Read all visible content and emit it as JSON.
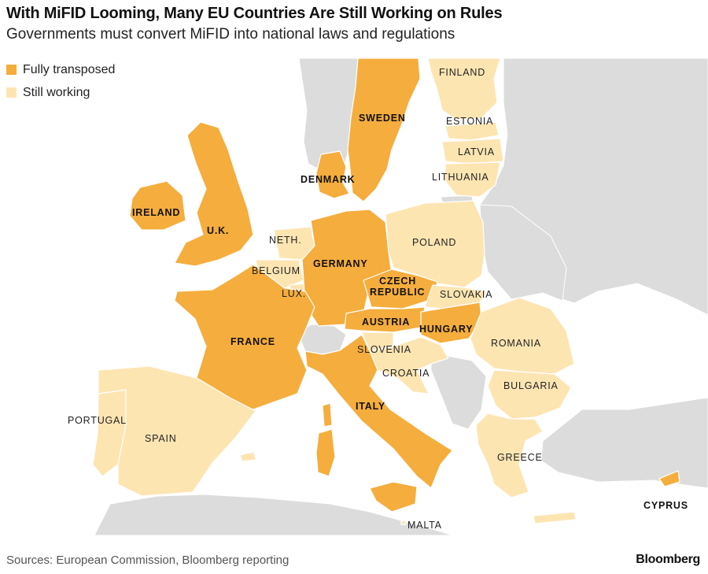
{
  "header": {
    "title": "With MiFID Looming, Many EU Countries Are Still Working on Rules",
    "subtitle": "Governments must convert MiFID into national laws and regulations"
  },
  "colors": {
    "fully": "#f5ad3d",
    "still": "#fde5b2",
    "other_land": "#dcdcdc",
    "sea": "#ffffff"
  },
  "legend": {
    "items": [
      {
        "label": "Fully transposed",
        "status": "fully"
      },
      {
        "label": "Still working",
        "status": "still"
      }
    ]
  },
  "countries": [
    {
      "name": "FINLAND",
      "status": "still"
    },
    {
      "name": "SWEDEN",
      "status": "fully"
    },
    {
      "name": "ESTONIA",
      "status": "still"
    },
    {
      "name": "LATVIA",
      "status": "still"
    },
    {
      "name": "LITHUANIA",
      "status": "still"
    },
    {
      "name": "DENMARK",
      "status": "fully"
    },
    {
      "name": "IRELAND",
      "status": "fully"
    },
    {
      "name": "U.K.",
      "status": "fully"
    },
    {
      "name": "NETH.",
      "status": "still"
    },
    {
      "name": "POLAND",
      "status": "still"
    },
    {
      "name": "GERMANY",
      "status": "fully"
    },
    {
      "name": "BELGIUM",
      "status": "still"
    },
    {
      "name": "LUX.",
      "status": "still"
    },
    {
      "name": "CZECH REPUBLIC",
      "status": "fully"
    },
    {
      "name": "SLOVAKIA",
      "status": "still"
    },
    {
      "name": "AUSTRIA",
      "status": "fully"
    },
    {
      "name": "HUNGARY",
      "status": "fully"
    },
    {
      "name": "FRANCE",
      "status": "fully"
    },
    {
      "name": "SLOVENIA",
      "status": "still"
    },
    {
      "name": "ROMANIA",
      "status": "still"
    },
    {
      "name": "CROATIA",
      "status": "still"
    },
    {
      "name": "BULGARIA",
      "status": "still"
    },
    {
      "name": "ITALY",
      "status": "fully"
    },
    {
      "name": "PORTUGAL",
      "status": "still"
    },
    {
      "name": "SPAIN",
      "status": "still"
    },
    {
      "name": "GREECE",
      "status": "still"
    },
    {
      "name": "CYPRUS",
      "status": "fully"
    },
    {
      "name": "MALTA",
      "status": "still"
    }
  ],
  "footer": {
    "source": "Sources: European Commission, Bloomberg reporting",
    "logo": "Bloomberg"
  }
}
